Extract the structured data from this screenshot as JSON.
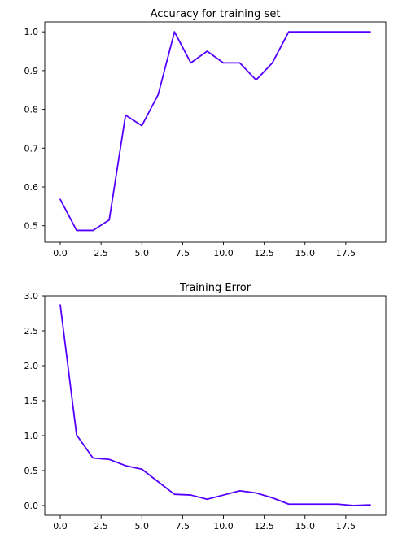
{
  "chart_data": [
    {
      "type": "line",
      "title": "Accuracy for training set",
      "xlabel": "",
      "ylabel": "",
      "xlim": [
        -0.95,
        19.95
      ],
      "ylim": [
        0.4575,
        1.0255
      ],
      "xticks": [
        0.0,
        2.5,
        5.0,
        7.5,
        10.0,
        12.5,
        15.0,
        17.5
      ],
      "xtick_labels": [
        "0.0",
        "2.5",
        "5.0",
        "7.5",
        "10.0",
        "12.5",
        "15.0",
        "17.5"
      ],
      "yticks": [
        0.5,
        0.6,
        0.7,
        0.8,
        0.9,
        1.0
      ],
      "ytick_labels": [
        "0.5",
        "0.6",
        "0.7",
        "0.8",
        "0.9",
        "1.0"
      ],
      "grid": false,
      "series": [
        {
          "color": "#5500ff",
          "x": [
            0,
            1,
            2,
            3,
            4,
            5,
            6,
            7,
            8,
            9,
            10,
            11,
            12,
            13,
            14,
            15,
            16,
            17,
            18,
            19
          ],
          "y": [
            0.568,
            0.488,
            0.488,
            0.515,
            0.785,
            0.758,
            0.838,
            1.0,
            0.92,
            0.95,
            0.92,
            0.92,
            0.876,
            0.92,
            1.0,
            1.0,
            1.0,
            1.0,
            1.0,
            1.0
          ]
        }
      ]
    },
    {
      "type": "line",
      "title": "Training Error",
      "xlabel": "",
      "ylabel": "",
      "xlim": [
        -0.95,
        19.95
      ],
      "ylim": [
        -0.14,
        3.0
      ],
      "xticks": [
        0.0,
        2.5,
        5.0,
        7.5,
        10.0,
        12.5,
        15.0,
        17.5
      ],
      "xtick_labels": [
        "0.0",
        "2.5",
        "5.0",
        "7.5",
        "10.0",
        "12.5",
        "15.0",
        "17.5"
      ],
      "yticks": [
        0.0,
        0.5,
        1.0,
        1.5,
        2.0,
        2.5,
        3.0
      ],
      "ytick_labels": [
        "0.0",
        "0.5",
        "1.0",
        "1.5",
        "2.0",
        "2.5",
        "3.0"
      ],
      "grid": false,
      "series": [
        {
          "color": "#5500ff",
          "x": [
            0,
            1,
            2,
            3,
            4,
            5,
            6,
            7,
            8,
            9,
            10,
            11,
            12,
            13,
            14,
            15,
            16,
            17,
            18,
            19
          ],
          "y": [
            2.87,
            1.01,
            0.68,
            0.66,
            0.57,
            0.52,
            0.34,
            0.16,
            0.15,
            0.09,
            0.15,
            0.21,
            0.18,
            0.11,
            0.02,
            0.02,
            0.02,
            0.02,
            0.0,
            0.01
          ]
        }
      ]
    }
  ]
}
